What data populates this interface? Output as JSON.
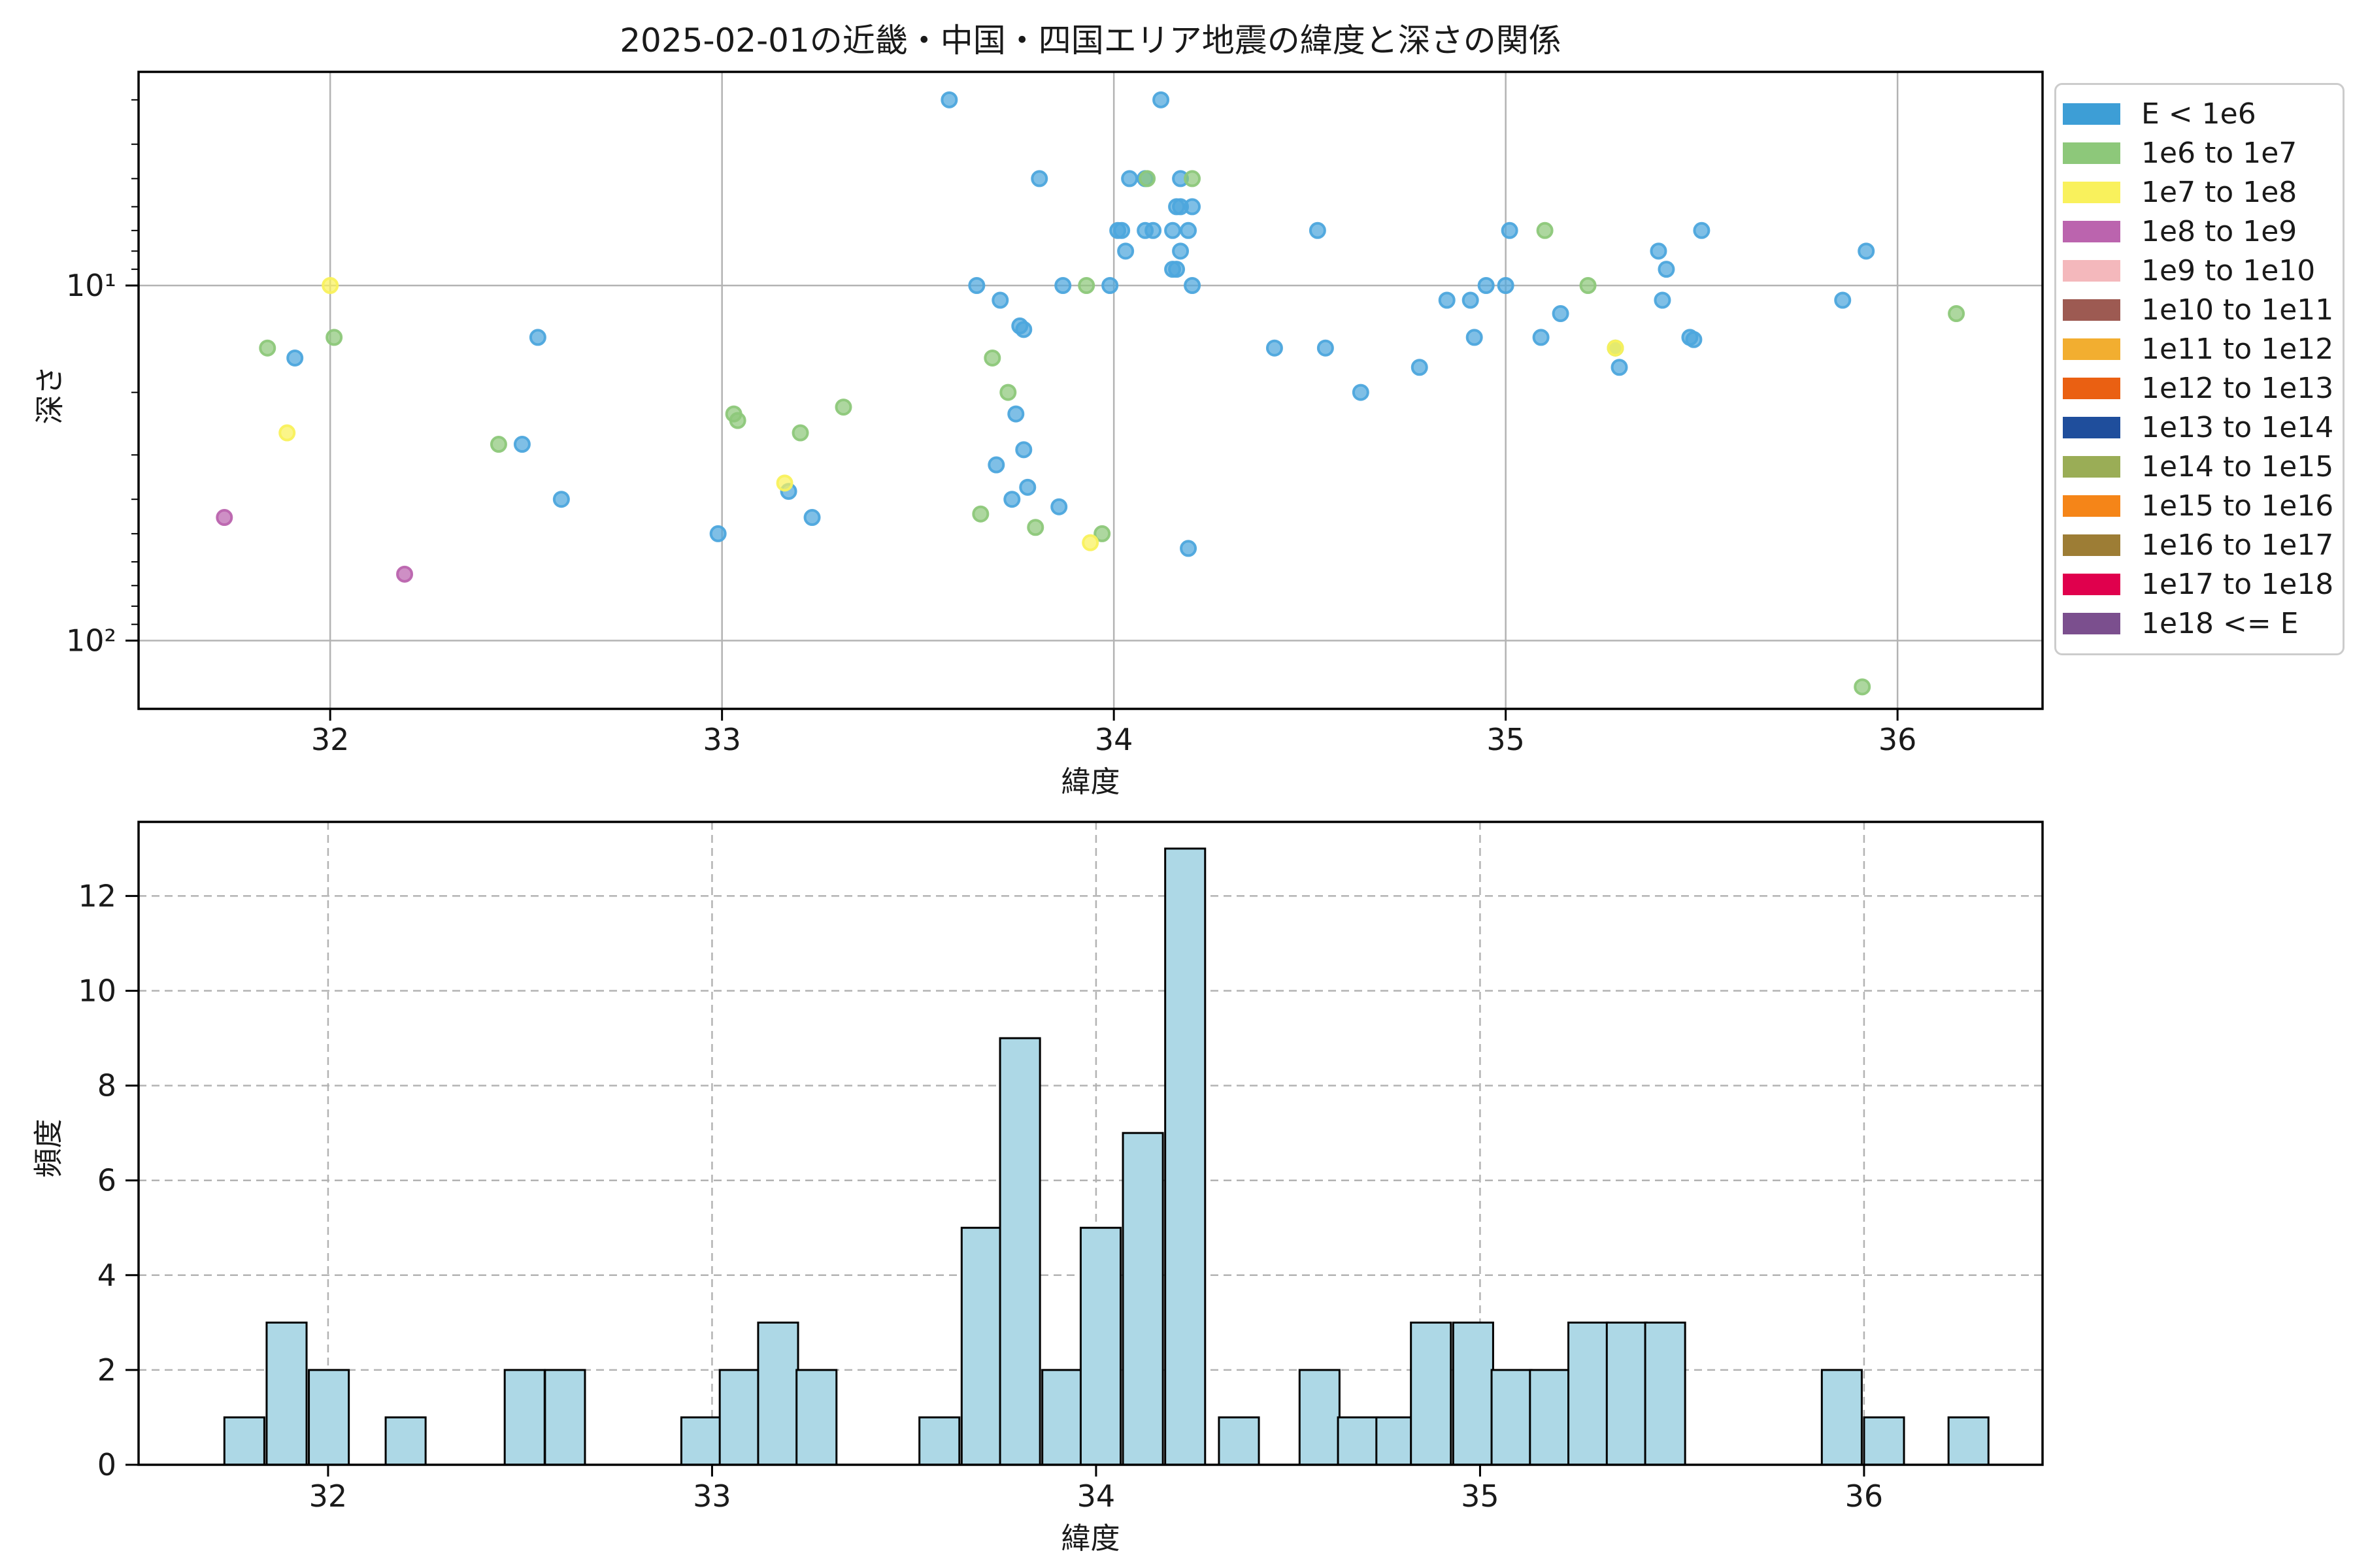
{
  "title": "2025-02-01の近畿・中国・四国エリア地震の緯度と深さの関係",
  "scatter": {
    "xlabel": "緯度",
    "ylabel": "深さ",
    "xticks": [
      "32",
      "33",
      "34",
      "35",
      "36"
    ],
    "ytick_labels": [
      "10¹",
      "10²"
    ]
  },
  "histogram": {
    "xlabel": "緯度",
    "ylabel": "頻度",
    "xticks": [
      "32",
      "33",
      "34",
      "35",
      "36"
    ],
    "yticks": [
      "0",
      "2",
      "4",
      "6",
      "8",
      "10",
      "12"
    ]
  },
  "legend": {
    "items": [
      {
        "label": "E < 1e6",
        "color": "#3d9ed6"
      },
      {
        "label": "1e6 to 1e7",
        "color": "#8dc87a"
      },
      {
        "label": "1e7 to 1e8",
        "color": "#f9f15c"
      },
      {
        "label": "1e8 to 1e9",
        "color": "#bb64ae"
      },
      {
        "label": "1e9 to 1e10",
        "color": "#f4b8bc"
      },
      {
        "label": "1e10 to 1e11",
        "color": "#9d5a52"
      },
      {
        "label": "1e11 to 1e12",
        "color": "#f2ae30"
      },
      {
        "label": "1e12 to 1e13",
        "color": "#ea6012"
      },
      {
        "label": "1e13 to 1e14",
        "color": "#1f4e9c"
      },
      {
        "label": "1e14 to 1e15",
        "color": "#9aad56"
      },
      {
        "label": "1e15 to 1e16",
        "color": "#f58518"
      },
      {
        "label": "1e16 to 1e17",
        "color": "#9d7d35"
      },
      {
        "label": "1e17 to 1e18",
        "color": "#e0004d"
      },
      {
        "label": "1e18 <= E",
        "color": "#7b4f8e"
      }
    ]
  },
  "chart_data": [
    {
      "type": "scatter",
      "title": "2025-02-01の近畿・中国・四国エリア地震の緯度と深さの関係",
      "xlabel": "緯度",
      "ylabel": "深さ",
      "x_range": [
        31.51,
        36.37
      ],
      "y_axis": "log scale, inverted (depth km), visible range ~2.5 to ~156",
      "x_gridlines": [
        32,
        33,
        34,
        35,
        36
      ],
      "y_gridlines": [
        10,
        100
      ],
      "grid": "solid gray",
      "legend_position": "outside right",
      "marker_edge_colors": {
        "E < 1e6": "#2b8ecb",
        "1e6 to 1e7": "#6fb65a",
        "1e7 to 1e8": "#e8dc3a",
        "1e8 to 1e9": "#a84d9b"
      },
      "series": [
        {
          "name": "E < 1e6",
          "color": "#4da6dd",
          "points": [
            [
              31.91,
              16
            ],
            [
              32.49,
              28
            ],
            [
              32.53,
              14
            ],
            [
              32.59,
              40
            ],
            [
              32.99,
              50
            ],
            [
              33.17,
              38
            ],
            [
              33.23,
              45
            ],
            [
              33.58,
              3
            ],
            [
              33.65,
              10
            ],
            [
              33.7,
              32
            ],
            [
              33.71,
              11
            ],
            [
              33.74,
              40
            ],
            [
              33.75,
              23
            ],
            [
              33.76,
              13
            ],
            [
              33.77,
              13.3
            ],
            [
              33.77,
              29
            ],
            [
              33.78,
              37
            ],
            [
              33.81,
              5
            ],
            [
              33.86,
              42
            ],
            [
              33.87,
              10
            ],
            [
              33.99,
              10
            ],
            [
              34.01,
              7
            ],
            [
              34.02,
              7
            ],
            [
              34.03,
              8
            ],
            [
              34.04,
              5
            ],
            [
              34.08,
              5
            ],
            [
              34.08,
              7
            ],
            [
              34.1,
              7
            ],
            [
              34.12,
              3
            ],
            [
              34.15,
              7
            ],
            [
              34.15,
              9
            ],
            [
              34.16,
              9
            ],
            [
              34.16,
              6
            ],
            [
              34.17,
              6
            ],
            [
              34.17,
              5
            ],
            [
              34.17,
              8
            ],
            [
              34.19,
              7
            ],
            [
              34.19,
              55
            ],
            [
              34.2,
              6
            ],
            [
              34.2,
              10
            ],
            [
              34.41,
              15
            ],
            [
              34.52,
              7
            ],
            [
              34.54,
              15
            ],
            [
              34.63,
              20
            ],
            [
              34.78,
              17
            ],
            [
              34.85,
              11
            ],
            [
              34.91,
              11
            ],
            [
              34.92,
              14
            ],
            [
              34.95,
              10
            ],
            [
              35.0,
              10
            ],
            [
              35.01,
              7
            ],
            [
              35.09,
              14
            ],
            [
              35.14,
              12
            ],
            [
              35.29,
              17
            ],
            [
              35.39,
              8
            ],
            [
              35.4,
              11
            ],
            [
              35.41,
              9
            ],
            [
              35.47,
              14
            ],
            [
              35.48,
              14.2
            ],
            [
              35.5,
              7
            ],
            [
              35.86,
              11
            ],
            [
              35.92,
              8
            ]
          ]
        },
        {
          "name": "1e6 to 1e7",
          "color": "#8dc87a",
          "points": [
            [
              31.84,
              15
            ],
            [
              32.01,
              14
            ],
            [
              32.43,
              28
            ],
            [
              33.03,
              23
            ],
            [
              33.04,
              24
            ],
            [
              33.2,
              26
            ],
            [
              33.31,
              22
            ],
            [
              33.66,
              44
            ],
            [
              33.69,
              16
            ],
            [
              33.73,
              20
            ],
            [
              33.8,
              48
            ],
            [
              33.93,
              10
            ],
            [
              33.97,
              50
            ],
            [
              34.085,
              5
            ],
            [
              34.2,
              5
            ],
            [
              35.1,
              7
            ],
            [
              35.21,
              10
            ],
            [
              35.28,
              15
            ],
            [
              35.91,
              135
            ],
            [
              36.15,
              12
            ]
          ]
        },
        {
          "name": "1e7 to 1e8",
          "color": "#f9f15c",
          "points": [
            [
              31.89,
              26
            ],
            [
              32.0,
              10
            ],
            [
              33.16,
              36
            ],
            [
              33.94,
              53
            ],
            [
              35.28,
              15
            ]
          ]
        },
        {
          "name": "1e8 to 1e9",
          "color": "#bb64ae",
          "points": [
            [
              31.73,
              45
            ],
            [
              32.19,
              65
            ]
          ]
        },
        {
          "name": "1e9 to 1e10",
          "color": "#f4b8bc",
          "points": []
        },
        {
          "name": "1e10 to 1e11",
          "color": "#9d5a52",
          "points": []
        },
        {
          "name": "1e11 to 1e12",
          "color": "#f2ae30",
          "points": []
        },
        {
          "name": "1e12 to 1e13",
          "color": "#ea6012",
          "points": []
        },
        {
          "name": "1e13 to 1e14",
          "color": "#1f4e9c",
          "points": []
        },
        {
          "name": "1e14 to 1e15",
          "color": "#9aad56",
          "points": []
        },
        {
          "name": "1e15 to 1e16",
          "color": "#f58518",
          "points": []
        },
        {
          "name": "1e16 to 1e17",
          "color": "#9d7d35",
          "points": []
        },
        {
          "name": "1e17 to 1e18",
          "color": "#e0004d",
          "points": []
        },
        {
          "name": "1e18 <= E",
          "color": "#7b4f8e",
          "points": []
        }
      ]
    },
    {
      "type": "bar",
      "subtype": "histogram",
      "xlabel": "緯度",
      "ylabel": "頻度",
      "x_range": [
        31.51,
        36.47
      ],
      "ylim": [
        0,
        13.6
      ],
      "yticks": [
        0,
        2,
        4,
        6,
        8,
        10,
        12
      ],
      "grid": "dashed gray",
      "bar_color": "#add8e6",
      "bar_edge_color": "#000000",
      "bin_width": 0.104,
      "bars": [
        [
          31.73,
          1
        ],
        [
          31.84,
          3
        ],
        [
          31.95,
          2
        ],
        [
          32.15,
          1
        ],
        [
          32.46,
          2
        ],
        [
          32.565,
          2
        ],
        [
          32.92,
          1
        ],
        [
          33.02,
          2
        ],
        [
          33.12,
          3
        ],
        [
          33.22,
          2
        ],
        [
          33.54,
          1
        ],
        [
          33.65,
          5
        ],
        [
          33.75,
          9
        ],
        [
          33.86,
          2
        ],
        [
          33.96,
          5
        ],
        [
          34.07,
          7
        ],
        [
          34.18,
          13
        ],
        [
          34.32,
          1
        ],
        [
          34.53,
          2
        ],
        [
          34.63,
          1
        ],
        [
          34.73,
          1
        ],
        [
          34.82,
          3
        ],
        [
          34.93,
          3
        ],
        [
          35.03,
          2
        ],
        [
          35.13,
          2
        ],
        [
          35.23,
          3
        ],
        [
          35.33,
          3
        ],
        [
          35.43,
          3
        ],
        [
          35.89,
          2
        ],
        [
          36.0,
          1
        ],
        [
          36.22,
          1
        ]
      ]
    }
  ]
}
